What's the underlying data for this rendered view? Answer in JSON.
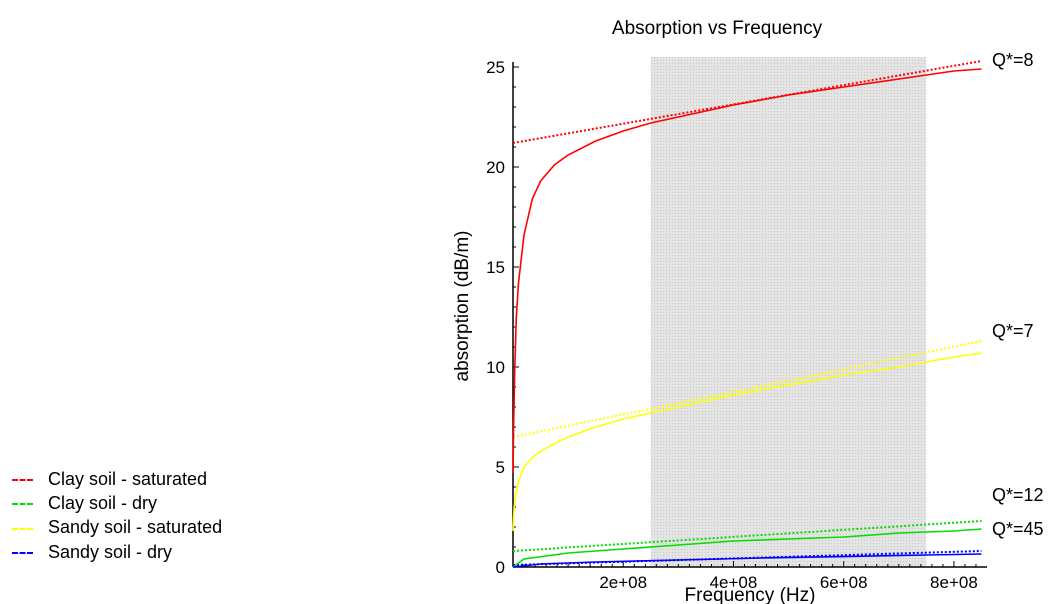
{
  "chart_data": {
    "type": "line",
    "title": "Absorption vs Frequency",
    "xlabel": "Frequency (Hz)",
    "ylabel": "absorption (dB/m)",
    "xlim": [
      0,
      860000000
    ],
    "ylim": [
      0,
      25.5
    ],
    "x_ticks": [
      200000000,
      400000000,
      600000000,
      800000000
    ],
    "x_tick_labels": [
      "2e+08",
      "4e+08",
      "6e+08",
      "8e+08"
    ],
    "y_ticks": [
      0,
      5,
      10,
      15,
      20,
      25
    ],
    "y_tick_labels": [
      "0",
      "5",
      "10",
      "15",
      "20",
      "25"
    ],
    "shaded_region": {
      "x_start": 250000000,
      "x_end": 750000000,
      "color": "#d9d9d9"
    },
    "grid": false,
    "legend_position": "bottom-left, outside plot",
    "series": [
      {
        "name": "Clay soil - saturated",
        "color": "#ff0000",
        "style": "solid",
        "x": [
          0,
          1000000,
          3000000,
          6000000,
          10000000,
          20000000,
          35000000,
          50000000,
          75000000,
          100000000,
          150000000,
          200000000,
          250000000,
          300000000,
          400000000,
          500000000,
          600000000,
          700000000,
          800000000,
          850000000
        ],
        "y": [
          4.7,
          7.0,
          9.8,
          12.5,
          14.2,
          16.6,
          18.4,
          19.3,
          20.1,
          20.6,
          21.3,
          21.8,
          22.2,
          22.5,
          23.1,
          23.6,
          24.0,
          24.4,
          24.8,
          24.9
        ]
      },
      {
        "name": "Clay soil - dry",
        "color": "#00dd00",
        "style": "solid",
        "x": [
          0,
          20000000,
          100000000,
          200000000,
          300000000,
          400000000,
          500000000,
          600000000,
          700000000,
          800000000,
          850000000
        ],
        "y": [
          0.0,
          0.4,
          0.7,
          0.9,
          1.1,
          1.3,
          1.4,
          1.5,
          1.7,
          1.8,
          1.9
        ]
      },
      {
        "name": "Sandy soil - saturated",
        "color": "#ffff00",
        "style": "solid",
        "x": [
          0,
          2000000,
          5000000,
          10000000,
          20000000,
          40000000,
          70000000,
          100000000,
          150000000,
          200000000,
          250000000,
          300000000,
          400000000,
          500000000,
          600000000,
          700000000,
          800000000,
          850000000
        ],
        "y": [
          1.8,
          3.0,
          3.6,
          4.3,
          5.0,
          5.6,
          6.1,
          6.5,
          7.0,
          7.4,
          7.7,
          8.0,
          8.6,
          9.1,
          9.6,
          10.0,
          10.5,
          10.7
        ]
      },
      {
        "name": "Sandy soil - dry",
        "color": "#0000ff",
        "style": "solid",
        "x": [
          0,
          50000000,
          150000000,
          300000000,
          450000000,
          600000000,
          750000000,
          850000000
        ],
        "y": [
          0.0,
          0.15,
          0.25,
          0.35,
          0.45,
          0.52,
          0.6,
          0.65
        ]
      }
    ],
    "fit_lines": [
      {
        "label": "Q*=8",
        "color": "#ff0000",
        "x": [
          0,
          850000000
        ],
        "y": [
          21.2,
          25.3
        ]
      },
      {
        "label": "Q*=7",
        "color": "#ffff00",
        "x": [
          0,
          850000000
        ],
        "y": [
          6.5,
          11.3
        ]
      },
      {
        "label": "Q*=12",
        "color": "#00dd00",
        "x": [
          0,
          850000000
        ],
        "y": [
          0.8,
          2.3
        ]
      },
      {
        "label": "Q*=45",
        "color": "#0000ff",
        "x": [
          0,
          850000000
        ],
        "y": [
          0.1,
          0.8
        ]
      }
    ]
  },
  "legend": {
    "items": [
      {
        "label": "Clay soil - saturated",
        "color": "#ff0000"
      },
      {
        "label": "Clay soil - dry",
        "color": "#00dd00"
      },
      {
        "label": "Sandy soil - saturated",
        "color": "#ffff00"
      },
      {
        "label": "Sandy soil - dry",
        "color": "#0000ff"
      }
    ]
  }
}
